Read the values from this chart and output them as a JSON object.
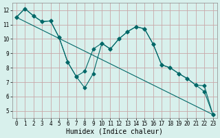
{
  "xlabel": "Humidex (Indice chaleur)",
  "background_color": "#d8f0ec",
  "plot_bg_color": "#d8f0ec",
  "grid_color": "#c8a8a8",
  "line_color": "#006868",
  "xlim": [
    -0.5,
    23.5
  ],
  "ylim": [
    4.5,
    12.5
  ],
  "yticks": [
    5,
    6,
    7,
    8,
    9,
    10,
    11,
    12
  ],
  "xticks": [
    0,
    1,
    2,
    3,
    4,
    5,
    6,
    7,
    8,
    9,
    10,
    11,
    12,
    13,
    14,
    15,
    16,
    17,
    18,
    19,
    20,
    21,
    22,
    23
  ],
  "line1_x": [
    0,
    1,
    2,
    3,
    4,
    5,
    6,
    7,
    8,
    9,
    10,
    11,
    12,
    13,
    14,
    15,
    16,
    17,
    18,
    19,
    20,
    21,
    22,
    23
  ],
  "line1_y": [
    11.5,
    12.1,
    11.6,
    11.2,
    11.25,
    10.1,
    8.4,
    7.4,
    6.6,
    7.6,
    9.7,
    9.3,
    10.0,
    10.5,
    10.85,
    10.7,
    9.65,
    8.2,
    8.0,
    7.6,
    7.25,
    6.8,
    6.75,
    4.75
  ],
  "line2_x": [
    0,
    1,
    2,
    3,
    4,
    5,
    6,
    7,
    8,
    9,
    10,
    11,
    12,
    13,
    14,
    15,
    16,
    17,
    18,
    19,
    20,
    21,
    22,
    23
  ],
  "line2_y": [
    11.5,
    12.1,
    11.6,
    11.2,
    11.25,
    10.1,
    8.4,
    7.4,
    7.75,
    9.3,
    9.7,
    9.3,
    10.0,
    10.5,
    10.85,
    10.7,
    9.65,
    8.2,
    8.0,
    7.6,
    7.25,
    6.8,
    6.35,
    4.75
  ],
  "trend_x": [
    0,
    23
  ],
  "trend_y": [
    11.5,
    4.75
  ],
  "tick_fontsize": 5.5,
  "xlabel_fontsize": 7,
  "marker_size": 2.5
}
